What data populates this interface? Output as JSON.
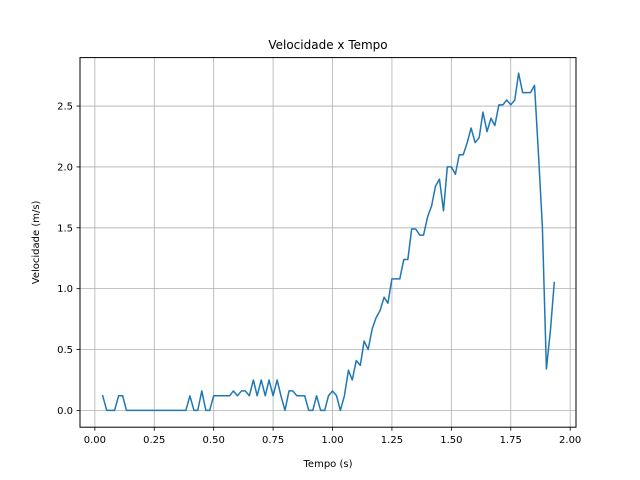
{
  "chart_data": {
    "type": "line",
    "title": "Velocidade x Tempo",
    "xlabel": "Tempo (s)",
    "ylabel": "Velocidade (m/s)",
    "xlim": [
      -0.0625,
      2.0245
    ],
    "ylim": [
      -0.138,
      2.898
    ],
    "grid": true,
    "x_ticks": [
      0.0,
      0.25,
      0.5,
      0.75,
      1.0,
      1.25,
      1.5,
      1.75,
      2.0
    ],
    "x_tick_labels": [
      "0.00",
      "0.25",
      "0.50",
      "0.75",
      "1.00",
      "1.25",
      "1.50",
      "1.75",
      "2.00"
    ],
    "y_ticks": [
      0.0,
      0.5,
      1.0,
      1.5,
      2.0,
      2.5
    ],
    "y_tick_labels": [
      "0.0",
      "0.5",
      "1.0",
      "1.5",
      "2.0",
      "2.5"
    ],
    "series": [
      {
        "color": "#1f77b4",
        "x": [
          0.033,
          0.05,
          0.067,
          0.083,
          0.1,
          0.117,
          0.133,
          0.15,
          0.167,
          0.183,
          0.2,
          0.217,
          0.233,
          0.25,
          0.267,
          0.283,
          0.3,
          0.317,
          0.333,
          0.35,
          0.367,
          0.383,
          0.4,
          0.417,
          0.433,
          0.45,
          0.467,
          0.483,
          0.5,
          0.517,
          0.533,
          0.55,
          0.567,
          0.583,
          0.6,
          0.617,
          0.633,
          0.65,
          0.667,
          0.683,
          0.7,
          0.717,
          0.733,
          0.75,
          0.767,
          0.783,
          0.8,
          0.817,
          0.833,
          0.85,
          0.867,
          0.883,
          0.9,
          0.917,
          0.933,
          0.95,
          0.967,
          0.983,
          1.0,
          1.017,
          1.033,
          1.05,
          1.067,
          1.083,
          1.1,
          1.117,
          1.133,
          1.15,
          1.167,
          1.183,
          1.2,
          1.217,
          1.233,
          1.25,
          1.267,
          1.283,
          1.3,
          1.317,
          1.333,
          1.35,
          1.367,
          1.383,
          1.4,
          1.417,
          1.433,
          1.45,
          1.467,
          1.483,
          1.5,
          1.517,
          1.533,
          1.55,
          1.567,
          1.583,
          1.6,
          1.617,
          1.633,
          1.65,
          1.667,
          1.683,
          1.7,
          1.717,
          1.733,
          1.75,
          1.767,
          1.783,
          1.8,
          1.817,
          1.833,
          1.85,
          1.867,
          1.883,
          1.9,
          1.917,
          1.933
        ],
        "y": [
          0.12,
          0.0,
          0.0,
          0.0,
          0.12,
          0.12,
          0.0,
          0.0,
          0.0,
          0.0,
          0.0,
          0.0,
          0.0,
          0.0,
          0.0,
          0.0,
          0.0,
          0.0,
          0.0,
          0.0,
          0.0,
          0.0,
          0.12,
          0.0,
          0.0,
          0.16,
          0.0,
          0.0,
          0.12,
          0.12,
          0.12,
          0.12,
          0.12,
          0.16,
          0.12,
          0.16,
          0.16,
          0.12,
          0.25,
          0.12,
          0.25,
          0.12,
          0.25,
          0.12,
          0.25,
          0.12,
          0.0,
          0.16,
          0.16,
          0.12,
          0.12,
          0.12,
          0.0,
          0.0,
          0.12,
          0.0,
          0.0,
          0.12,
          0.16,
          0.12,
          0.0,
          0.12,
          0.33,
          0.25,
          0.41,
          0.37,
          0.57,
          0.5,
          0.67,
          0.76,
          0.82,
          0.93,
          0.88,
          1.08,
          1.08,
          1.08,
          1.24,
          1.24,
          1.49,
          1.49,
          1.44,
          1.44,
          1.59,
          1.68,
          1.84,
          1.9,
          1.64,
          2.0,
          2.0,
          1.94,
          2.1,
          2.1,
          2.2,
          2.32,
          2.2,
          2.24,
          2.45,
          2.29,
          2.4,
          2.34,
          2.51,
          2.51,
          2.55,
          2.51,
          2.55,
          2.77,
          2.61,
          2.61,
          2.61,
          2.67,
          2.09,
          1.51,
          0.34,
          0.66,
          1.05
        ]
      }
    ]
  }
}
